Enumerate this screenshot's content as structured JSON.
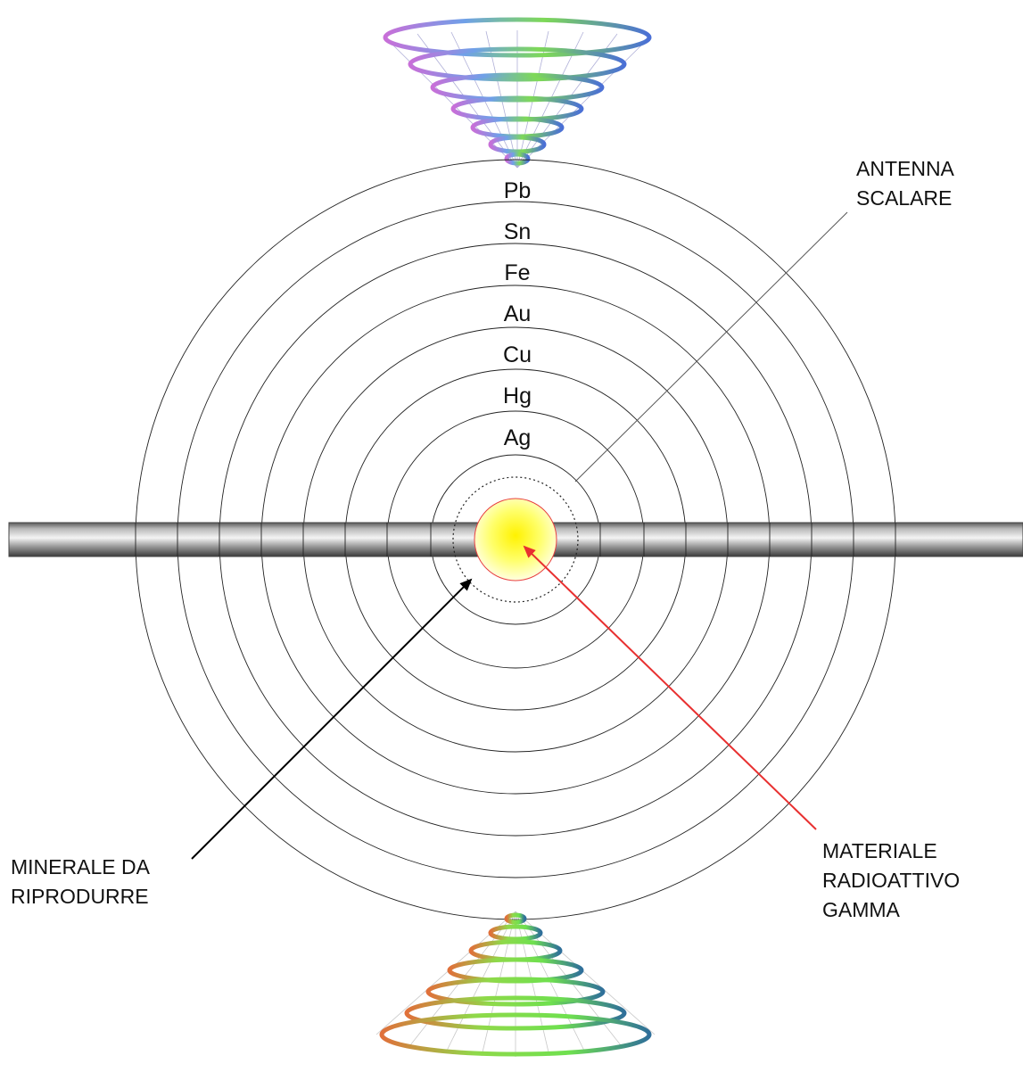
{
  "diagram": {
    "element_rings": [
      {
        "symbol": "Pb"
      },
      {
        "symbol": "Sn"
      },
      {
        "symbol": "Fe"
      },
      {
        "symbol": "Au"
      },
      {
        "symbol": "Cu"
      },
      {
        "symbol": "Hg"
      },
      {
        "symbol": "Ag"
      }
    ],
    "labels": {
      "antenna": [
        "ANTENNA",
        "SCALARE"
      ],
      "mineral": [
        "MINERALE DA",
        "RIPRODURRE"
      ],
      "radioactive": [
        "MATERIALE",
        "RADIOATTIVO",
        "GAMMA"
      ]
    },
    "colors": {
      "radioactive_arrow": "#e83030",
      "mineral_arrow": "#000000",
      "core_fill": "#ffff33",
      "core_border": "#e84040",
      "bar": "#9a9a9a"
    }
  }
}
